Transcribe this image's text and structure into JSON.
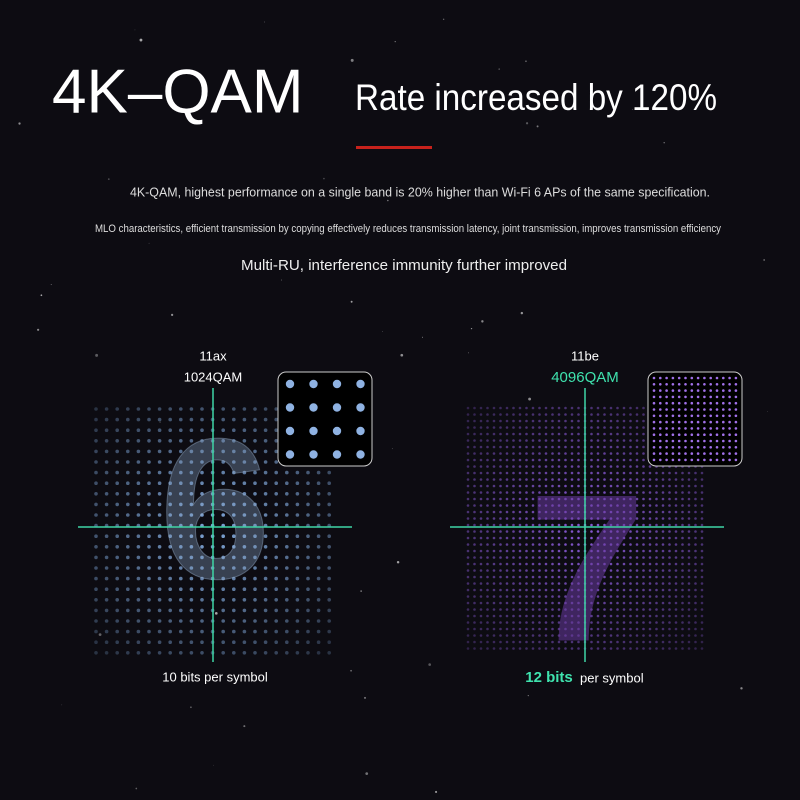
{
  "header": {
    "title": "4K–QAM",
    "subtitle": "Rate increased by 120%"
  },
  "lines": [
    "4K-QAM, highest performance on a single band is 20% higher than Wi-Fi 6 APs of the same specification.",
    "MLO characteristics, efficient transmission by copying effectively reduces transmission latency, joint transmission, improves transmission efficiency",
    "Multi-RU, interference immunity further improved"
  ],
  "panels": [
    {
      "standard": "11ax",
      "modulation": "1024QAM",
      "digit": "6",
      "bits": "10 bits per symbol"
    },
    {
      "standard": "11be",
      "modulation": "4096QAM",
      "digit": "7",
      "bits_value": "12 bits",
      "bits_suffix": "per symbol"
    }
  ]
}
